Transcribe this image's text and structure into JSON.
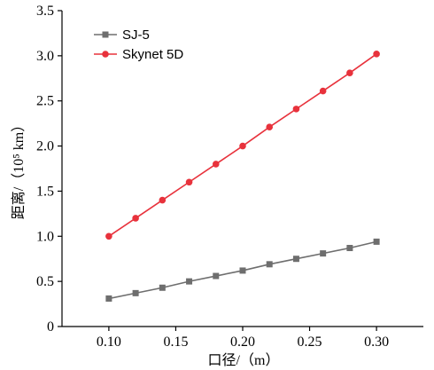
{
  "chart_data": {
    "type": "line",
    "xlabel": "口径/（m）",
    "ylabel": "距离/（10⁵ km）",
    "x": [
      0.1,
      0.12,
      0.14,
      0.16,
      0.18,
      0.2,
      0.22,
      0.24,
      0.26,
      0.28,
      0.3
    ],
    "x_ticks": [
      "0.10",
      "0.15",
      "0.20",
      "0.25",
      "0.30"
    ],
    "y_ticks": [
      "0",
      "0.5",
      "1.0",
      "1.5",
      "2.0",
      "2.5",
      "3.0",
      "3.5"
    ],
    "xlim": [
      0.065,
      0.335
    ],
    "ylim": [
      0,
      3.5
    ],
    "legend_position": "top-left",
    "grid": false,
    "series": [
      {
        "name": "SJ-5",
        "color": "#6e6e6e",
        "marker": "square",
        "values": [
          0.31,
          0.37,
          0.43,
          0.5,
          0.56,
          0.62,
          0.69,
          0.75,
          0.81,
          0.87,
          0.94
        ]
      },
      {
        "name": "Skynet 5D",
        "color": "#e8323c",
        "marker": "circle",
        "values": [
          1.0,
          1.2,
          1.4,
          1.6,
          1.8,
          2.0,
          2.21,
          2.41,
          2.61,
          2.81,
          3.02
        ]
      }
    ]
  }
}
